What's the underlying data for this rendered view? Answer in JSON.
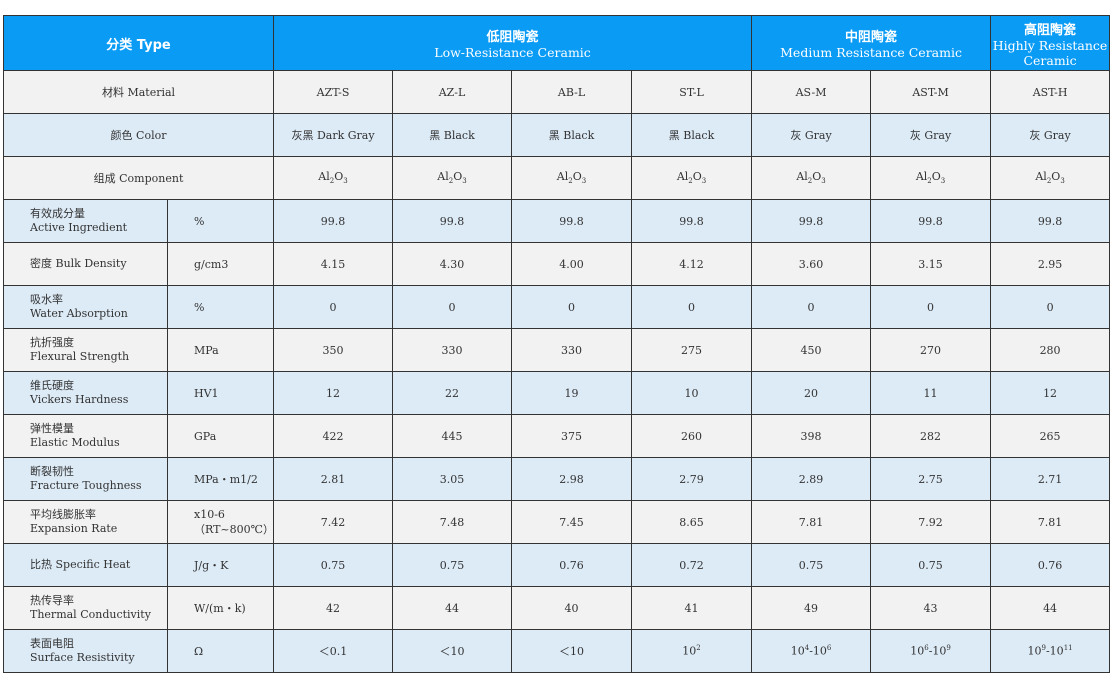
{
  "header": {
    "type": "分类 Type",
    "groups": [
      {
        "cn": "低阻陶瓷",
        "en": "Low-Resistance Ceramic"
      },
      {
        "cn": "中阻陶瓷",
        "en": "Medium Resistance Ceramic"
      },
      {
        "cn": "高阻陶瓷",
        "en": "Highly Resistance Ceramic"
      }
    ]
  },
  "top_rows": [
    {
      "label": "材料 Material",
      "values": [
        "AZT-S",
        "AZ-L",
        "AB-L",
        "ST-L",
        "AS-M",
        "AST-M",
        "AST-H"
      ]
    },
    {
      "label": "颜色 Color",
      "values": [
        "灰黑 Dark Gray",
        "黑 Black",
        "黑 Black",
        "黑 Black",
        "灰 Gray",
        "灰 Gray",
        "灰 Gray"
      ]
    },
    {
      "label": "组成 Component",
      "values": [
        "Al_2O_3",
        "Al_2O_3",
        "Al_2O_3",
        "Al_2O_3",
        "Al_2O_3",
        "Al_2O_3",
        "Al_2O_3"
      ]
    }
  ],
  "rows": [
    {
      "cn": "有效成分量",
      "en": "Active Ingredient",
      "unit": "%",
      "values": [
        "99.8",
        "99.8",
        "99.8",
        "99.8",
        "99.8",
        "99.8",
        "99.8"
      ]
    },
    {
      "cn": "密度 Bulk Density",
      "en": "",
      "unit": "g/cm3",
      "values": [
        "4.15",
        "4.30",
        "4.00",
        "4.12",
        "3.60",
        "3.15",
        "2.95"
      ]
    },
    {
      "cn": "吸水率",
      "en": "Water Absorption",
      "unit": "%",
      "values": [
        "0",
        "0",
        "0",
        "0",
        "0",
        "0",
        "0"
      ]
    },
    {
      "cn": "抗折强度",
      "en": "Flexural Strength",
      "unit": "MPa",
      "values": [
        "350",
        "330",
        "330",
        "275",
        "450",
        "270",
        "280"
      ]
    },
    {
      "cn": "维氏硬度",
      "en": "Vickers Hardness",
      "unit": "HV1",
      "values": [
        "12",
        "22",
        "19",
        "10",
        "20",
        "11",
        "12"
      ]
    },
    {
      "cn": "弹性模量",
      "en": "Elastic Modulus",
      "unit": "GPa",
      "values": [
        "422",
        "445",
        "375",
        "260",
        "398",
        "282",
        "265"
      ]
    },
    {
      "cn": "断裂韧性",
      "en": "Fracture Toughness",
      "unit": "MPa・m1/2",
      "values": [
        "2.81",
        "3.05",
        "2.98",
        "2.79",
        "2.89",
        "2.75",
        "2.71"
      ]
    },
    {
      "cn": "平均线膨胀率",
      "en": "Expansion Rate",
      "unit": "x10-6\n（RT~800℃）",
      "values": [
        "7.42",
        "7.48",
        "7.45",
        "8.65",
        "7.81",
        "7.92",
        "7.81"
      ]
    },
    {
      "cn": "比热 Specific Heat",
      "en": "",
      "unit": "J/g・K",
      "values": [
        "0.75",
        "0.75",
        "0.76",
        "0.72",
        "0.75",
        "0.75",
        "0.76"
      ]
    },
    {
      "cn": "热传导率",
      "en": "Thermal Conductivity",
      "unit": "W/(m・k)",
      "values": [
        "42",
        "44",
        "40",
        "41",
        "49",
        "43",
        "44"
      ]
    },
    {
      "cn": "表面电阻",
      "en": "Surface Resistivity",
      "unit": "Ω",
      "values": [
        "＜0.1",
        "＜10",
        "＜10",
        "10^2",
        "10^4-10^6",
        "10^6-10^9",
        "10^9-10^11"
      ]
    }
  ]
}
